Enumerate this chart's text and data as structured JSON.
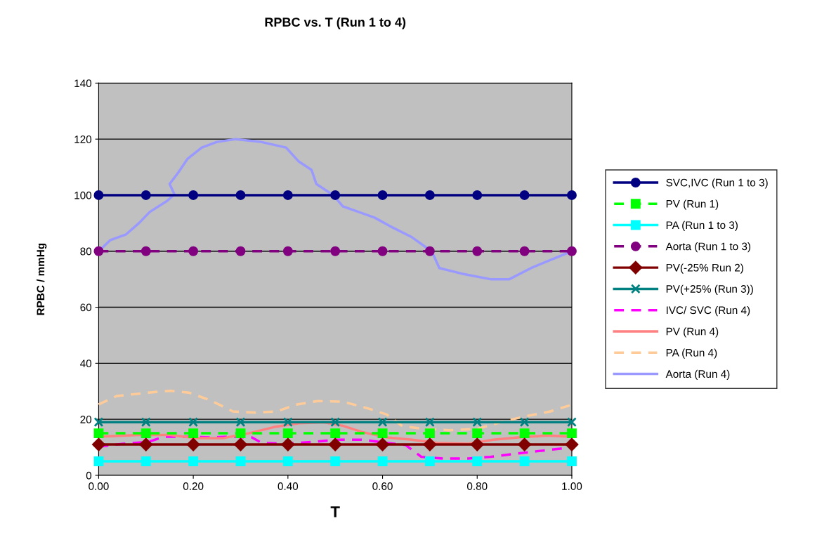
{
  "chart_data": {
    "type": "line",
    "title": "RPBC vs. T (Run 1 to 4)",
    "xlabel": "T",
    "ylabel": "RPBC / mmHg",
    "xlim": [
      0,
      1
    ],
    "ylim": [
      0,
      140
    ],
    "xticks": [
      {
        "value": 0,
        "label": "0.00"
      },
      {
        "value": 0.2,
        "label": "0.20"
      },
      {
        "value": 0.4,
        "label": "0.40"
      },
      {
        "value": 0.6,
        "label": "0.60"
      },
      {
        "value": 0.8,
        "label": "0.80"
      },
      {
        "value": 1,
        "label": "1.00"
      }
    ],
    "yticks": [
      0,
      20,
      40,
      60,
      80,
      100,
      120,
      140
    ],
    "grid": "y",
    "legend": "right",
    "x": [
      0,
      0.1,
      0.2,
      0.3,
      0.4,
      0.5,
      0.6,
      0.7,
      0.8,
      0.9,
      1.0
    ],
    "series": [
      {
        "name": "SVC,IVC (Run 1 to 3)",
        "color": "#000080",
        "marker": "circle",
        "line_style": "solid",
        "values": [
          100,
          100,
          100,
          100,
          100,
          100,
          100,
          100,
          100,
          100,
          100
        ]
      },
      {
        "name": "PV (Run 1)",
        "color": "#00ff00",
        "marker": "square",
        "line_style": "dashed",
        "values": [
          15,
          15,
          15,
          15,
          15,
          15,
          15,
          15,
          15,
          15,
          15
        ]
      },
      {
        "name": "PA (Run 1 to 3)",
        "color": "#00ffff",
        "marker": "square",
        "line_style": "solid",
        "values": [
          5,
          5,
          5,
          5,
          5,
          5,
          5,
          5,
          5,
          5,
          5
        ]
      },
      {
        "name": "Aorta (Run 1 to 3)",
        "color": "#800080",
        "marker": "circle",
        "line_style": "dashed",
        "values": [
          80,
          80,
          80,
          80,
          80,
          80,
          80,
          80,
          80,
          80,
          80
        ]
      },
      {
        "name": "PV(-25% Run 2)",
        "color": "#800000",
        "marker": "diamond",
        "line_style": "solid",
        "values": [
          11,
          11,
          11,
          11,
          11,
          11,
          11,
          11,
          11,
          11,
          11
        ]
      },
      {
        "name": "PV(+25% (Run 3))",
        "color": "#008080",
        "marker": "cross",
        "line_style": "solid",
        "values": [
          19,
          19,
          19,
          19,
          19,
          19,
          19,
          19,
          19,
          19,
          19
        ]
      },
      {
        "name": "IVC/ SVC (Run 4)",
        "color": "#ff00ff",
        "marker": "none",
        "line_style": "dashed",
        "x": [
          0,
          0.052,
          0.105,
          0.138,
          0.184,
          0.237,
          0.277,
          0.324,
          0.344,
          0.397,
          0.45,
          0.503,
          0.556,
          0.609,
          0.649,
          0.682,
          0.728,
          0.781,
          0.828,
          0.88,
          0.927,
          0.98
        ],
        "values": [
          10.2,
          11.3,
          11.9,
          13.8,
          13.8,
          13.5,
          13.8,
          13.5,
          11.6,
          11.3,
          11.9,
          12.7,
          12.7,
          11.6,
          10.8,
          6.6,
          6.0,
          6.0,
          6.6,
          7.7,
          8.6,
          9.6
        ]
      },
      {
        "name": "PV (Run 4)",
        "color": "#ff8080",
        "marker": "none",
        "line_style": "solid",
        "x": [
          0,
          0.085,
          0.151,
          0.204,
          0.264,
          0.317,
          0.37,
          0.423,
          0.476,
          0.516,
          0.556,
          0.609,
          0.662,
          0.715,
          0.781,
          0.834,
          0.887,
          0.947,
          1.0
        ],
        "values": [
          13.8,
          14.4,
          14.4,
          13.3,
          13.3,
          15,
          17.2,
          18.6,
          18.9,
          17.7,
          15.5,
          13.5,
          12.7,
          11.6,
          11.3,
          12.7,
          13.5,
          14.2,
          13.8
        ]
      },
      {
        "name": "PA (Run 4)",
        "color": "#ffcc99",
        "marker": "none",
        "line_style": "dashed",
        "x": [
          0,
          0.038,
          0.105,
          0.151,
          0.191,
          0.237,
          0.284,
          0.33,
          0.377,
          0.416,
          0.463,
          0.516,
          0.569,
          0.609,
          0.642,
          0.688,
          0.741,
          0.801,
          0.848,
          0.9,
          0.954,
          1.0
        ],
        "values": [
          25.3,
          28.3,
          29.5,
          30.2,
          29.5,
          26.7,
          22.8,
          22.4,
          22.8,
          25.2,
          26.5,
          26.3,
          23.9,
          21.7,
          17.5,
          16.6,
          16.1,
          16.6,
          18.9,
          21,
          22.8,
          25.2
        ]
      },
      {
        "name": "Aorta (Run 4)",
        "color": "#9999ff",
        "marker": "none",
        "line_style": "solid",
        "x": [
          0,
          0.025,
          0.058,
          0.085,
          0.108,
          0.145,
          0.16,
          0.15,
          0.168,
          0.188,
          0.218,
          0.25,
          0.29,
          0.343,
          0.396,
          0.423,
          0.45,
          0.46,
          0.496,
          0.516,
          0.583,
          0.615,
          0.662,
          0.695,
          0.708,
          0.72,
          0.767,
          0.828,
          0.868,
          0.914,
          1.0
        ],
        "values": [
          80,
          84,
          86,
          90,
          94,
          98,
          100.3,
          104,
          108,
          113,
          117,
          119,
          120,
          119,
          117,
          112,
          109,
          104,
          100,
          96,
          92,
          89,
          85,
          81,
          78.5,
          74,
          72,
          70,
          70,
          74,
          80
        ]
      }
    ]
  }
}
